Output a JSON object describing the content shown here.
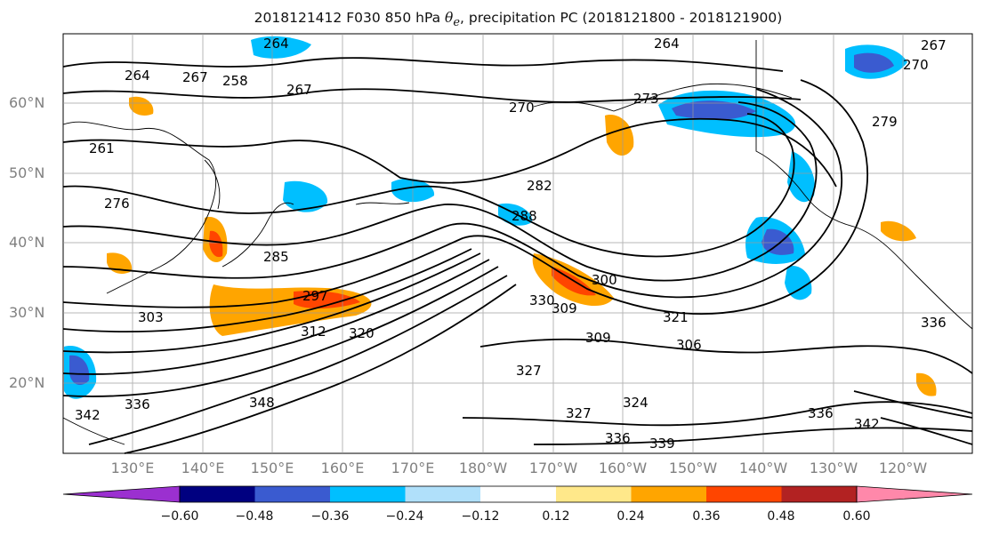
{
  "title": {
    "prefix": "2018121412 F030 850 hPa ",
    "symbol": "θ",
    "symbol_sub": "e",
    "suffix": ", precipitation PC (2018121800 - 2018121900)"
  },
  "map": {
    "lat_labels": [
      "60°N",
      "50°N",
      "40°N",
      "30°N",
      "20°N"
    ],
    "lon_labels": [
      "130°E",
      "140°E",
      "150°E",
      "160°E",
      "170°E",
      "180°W",
      "170°W",
      "160°W",
      "150°W",
      "140°W",
      "130°W",
      "120°W"
    ],
    "contour_labels": [
      "264",
      "264",
      "267",
      "258",
      "267",
      "270",
      "273",
      "264",
      "267",
      "270",
      "279",
      "261",
      "276",
      "282",
      "285",
      "288",
      "297",
      "300",
      "303",
      "312",
      "309",
      "321",
      "306",
      "320",
      "327",
      "336",
      "342",
      "336",
      "348",
      "327",
      "324",
      "339",
      "336",
      "342",
      "309",
      "336",
      "330"
    ],
    "contour_color": "#000000",
    "grid": true
  },
  "colorbar": {
    "ticks": [
      "−0.60",
      "−0.48",
      "−0.36",
      "−0.24",
      "−0.12",
      "0.12",
      "0.24",
      "0.36",
      "0.48",
      "0.60"
    ],
    "colors": [
      "#9b30d0",
      "#000080",
      "#3a5bd0",
      "#00bfff",
      "#b0e0fa",
      "#ffffff",
      "#ffe88a",
      "#ffa500",
      "#ff4500",
      "#b22222",
      "#ff88aa"
    ],
    "bounds": [
      -0.6,
      0.6
    ]
  }
}
